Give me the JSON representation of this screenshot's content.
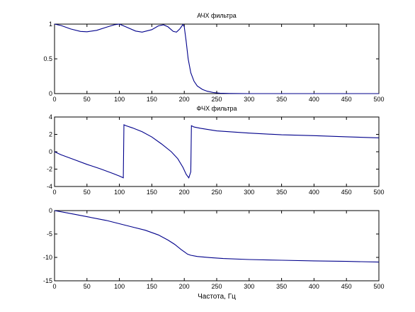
{
  "chart_data": [
    {
      "type": "line",
      "title": "АЧХ фильтра",
      "xlabel": "",
      "ylabel": "",
      "xlim": [
        0,
        500
      ],
      "ylim": [
        0,
        1
      ],
      "grid": false,
      "xticks": [
        0,
        50,
        100,
        150,
        200,
        250,
        300,
        350,
        400,
        450,
        500
      ],
      "yticks": [
        0,
        0.5,
        1
      ],
      "ytick_labels": [
        "0",
        "0.5",
        "1"
      ],
      "line_color": "#00008b",
      "series": [
        {
          "x": [
            0,
            10,
            25,
            40,
            50,
            65,
            80,
            92,
            100,
            110,
            125,
            135,
            150,
            160,
            168,
            175,
            183,
            188,
            193,
            198,
            200,
            203,
            206,
            210,
            215,
            220,
            228,
            235,
            245,
            255,
            270,
            300,
            350,
            400,
            450,
            500
          ],
          "y": [
            1.0,
            0.98,
            0.93,
            0.895,
            0.89,
            0.91,
            0.955,
            0.99,
            1.0,
            0.96,
            0.9,
            0.885,
            0.92,
            0.975,
            0.99,
            0.96,
            0.895,
            0.885,
            0.93,
            0.995,
            0.96,
            0.75,
            0.5,
            0.3,
            0.18,
            0.11,
            0.06,
            0.035,
            0.015,
            0.006,
            0.002,
            0.0,
            0.0,
            0.0,
            0.0,
            0.0
          ]
        }
      ]
    },
    {
      "type": "line",
      "title": "ФЧХ фильтра",
      "xlabel": "",
      "ylabel": "",
      "xlim": [
        0,
        500
      ],
      "ylim": [
        -4,
        4
      ],
      "grid": false,
      "xticks": [
        0,
        50,
        100,
        150,
        200,
        250,
        300,
        350,
        400,
        450,
        500
      ],
      "yticks": [
        -4,
        -2,
        0,
        2,
        4
      ],
      "ytick_labels": [
        "-4",
        "-2",
        "0",
        "2",
        "4"
      ],
      "line_color": "#00008b",
      "series": [
        {
          "x": [
            0,
            10,
            30,
            50,
            70,
            90,
            100,
            106,
            107,
            110,
            120,
            135,
            150,
            165,
            180,
            190,
            198,
            203,
            207,
            210,
            211,
            215,
            225,
            250,
            300,
            350,
            400,
            450,
            500
          ],
          "y": [
            0.0,
            -0.35,
            -0.9,
            -1.45,
            -1.95,
            -2.5,
            -2.8,
            -3.0,
            3.1,
            3.0,
            2.75,
            2.3,
            1.7,
            0.9,
            0.0,
            -0.8,
            -1.8,
            -2.6,
            -3.0,
            -2.3,
            3.0,
            2.85,
            2.7,
            2.4,
            2.15,
            1.95,
            1.85,
            1.72,
            1.6
          ]
        }
      ]
    },
    {
      "type": "line",
      "title": "",
      "xlabel": "Частота, Гц",
      "ylabel": "",
      "xlim": [
        0,
        500
      ],
      "ylim": [
        -15,
        0
      ],
      "grid": false,
      "xticks": [
        0,
        50,
        100,
        150,
        200,
        250,
        300,
        350,
        400,
        450,
        500
      ],
      "yticks": [
        -15,
        -10,
        -5,
        0
      ],
      "ytick_labels": [
        "-15",
        "-10",
        "-5",
        "0"
      ],
      "line_color": "#00008b",
      "series": [
        {
          "x": [
            0,
            20,
            50,
            80,
            100,
            120,
            140,
            160,
            175,
            185,
            195,
            200,
            205,
            210,
            220,
            240,
            260,
            300,
            350,
            400,
            450,
            500
          ],
          "y": [
            0.0,
            -0.5,
            -1.3,
            -2.1,
            -2.8,
            -3.5,
            -4.2,
            -5.2,
            -6.3,
            -7.2,
            -8.3,
            -8.8,
            -9.3,
            -9.55,
            -9.8,
            -10.05,
            -10.25,
            -10.45,
            -10.6,
            -10.75,
            -10.85,
            -11.0
          ]
        }
      ]
    }
  ]
}
